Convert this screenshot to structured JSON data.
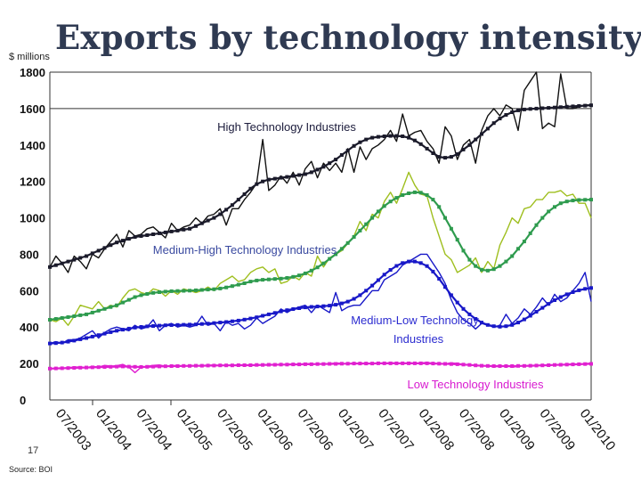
{
  "page": {
    "title": "Exports by technology intensity",
    "unit": "$ millions",
    "page_number": "17",
    "source": "Source: BOI"
  },
  "colors": {
    "high": "#111111",
    "medium_high": "#9fbf1f",
    "medium_high_trend": "#2e9b4e",
    "medium_low": "#1818c8",
    "low": "#e020d0",
    "axis": "#555555"
  },
  "chart_data": {
    "type": "line",
    "title": "Exports by technology intensity",
    "ylabel": "$ millions",
    "xlabel": "",
    "ylim": [
      0,
      1800
    ],
    "yticks": [
      0,
      200,
      400,
      600,
      800,
      1000,
      1200,
      1400,
      1600,
      1800
    ],
    "ytick_labels": [
      "0",
      "200",
      "400",
      "600",
      "800",
      "1000",
      "1200",
      "1400",
      "1600",
      "1800"
    ],
    "x_start": "01/2003",
    "x_end": "06/2010",
    "xtick_labels": [
      "07/2003",
      "01/2004",
      "07/2004",
      "01/2005",
      "07/2005",
      "01/2006",
      "07/2006",
      "01/2007",
      "07/2007",
      "01/2008",
      "07/2008",
      "01/2009",
      "07/2009",
      "01/2010"
    ],
    "series": [
      {
        "name": "High Technology Industries",
        "label_lines": [
          "High Technology Industries"
        ],
        "color_key": "high",
        "actual": [
          730,
          790,
          750,
          700,
          790,
          760,
          720,
          800,
          780,
          830,
          870,
          910,
          840,
          930,
          900,
          910,
          940,
          950,
          920,
          890,
          970,
          930,
          950,
          960,
          1000,
          970,
          1010,
          1020,
          1050,
          960,
          1050,
          1050,
          1100,
          1140,
          1190,
          1430,
          1150,
          1180,
          1230,
          1190,
          1250,
          1180,
          1270,
          1310,
          1220,
          1300,
          1260,
          1300,
          1250,
          1380,
          1250,
          1390,
          1320,
          1380,
          1400,
          1430,
          1480,
          1420,
          1570,
          1450,
          1470,
          1480,
          1420,
          1380,
          1300,
          1500,
          1450,
          1320,
          1400,
          1430,
          1300,
          1480,
          1560,
          1600,
          1560,
          1620,
          1600,
          1480,
          1700,
          1750,
          1800,
          1490,
          1520,
          1500,
          1790,
          1600,
          1600,
          1610,
          1620,
          1620
        ],
        "trend": [
          730,
          740,
          750,
          760,
          770,
          780,
          790,
          805,
          820,
          835,
          850,
          865,
          875,
          885,
          895,
          900,
          905,
          910,
          915,
          920,
          925,
          930,
          935,
          940,
          955,
          970,
          985,
          1000,
          1020,
          1045,
          1070,
          1100,
          1130,
          1160,
          1185,
          1200,
          1210,
          1215,
          1220,
          1225,
          1230,
          1235,
          1240,
          1250,
          1265,
          1280,
          1300,
          1320,
          1345,
          1370,
          1395,
          1415,
          1430,
          1440,
          1445,
          1448,
          1450,
          1450,
          1448,
          1440,
          1425,
          1405,
          1380,
          1355,
          1335,
          1330,
          1335,
          1350,
          1375,
          1400,
          1430,
          1460,
          1490,
          1520,
          1545,
          1565,
          1580,
          1590,
          1595,
          1598,
          1600,
          1602,
          1604,
          1606,
          1608,
          1610,
          1612,
          1614,
          1616,
          1618
        ]
      },
      {
        "name": "Medium-High Technology Industries",
        "label_lines": [
          "Medium-High Technology Industries"
        ],
        "color_key": "medium_high",
        "actual": [
          440,
          430,
          450,
          410,
          460,
          520,
          510,
          500,
          540,
          500,
          520,
          510,
          560,
          600,
          610,
          590,
          580,
          610,
          600,
          570,
          600,
          580,
          610,
          600,
          590,
          600,
          620,
          600,
          640,
          660,
          680,
          650,
          660,
          700,
          720,
          730,
          700,
          720,
          640,
          650,
          680,
          660,
          700,
          680,
          790,
          730,
          780,
          800,
          820,
          860,
          900,
          980,
          930,
          1020,
          1000,
          1090,
          1140,
          1080,
          1160,
          1250,
          1180,
          1130,
          1120,
          1000,
          900,
          800,
          770,
          700,
          720,
          740,
          780,
          700,
          760,
          720,
          850,
          920,
          1000,
          970,
          1050,
          1060,
          1100,
          1100,
          1140,
          1140,
          1150,
          1120,
          1130,
          1080,
          1080,
          1000
        ],
        "trend": [
          440,
          445,
          450,
          455,
          460,
          465,
          470,
          480,
          490,
          500,
          510,
          520,
          535,
          550,
          565,
          575,
          582,
          588,
          592,
          595,
          597,
          598,
          599,
          600,
          602,
          604,
          606,
          608,
          612,
          618,
          625,
          633,
          641,
          650,
          656,
          660,
          662,
          664,
          666,
          670,
          676,
          684,
          695,
          710,
          728,
          750,
          775,
          800,
          830,
          862,
          895,
          930,
          965,
          1000,
          1035,
          1065,
          1090,
          1110,
          1125,
          1135,
          1140,
          1138,
          1125,
          1100,
          1060,
          1000,
          940,
          880,
          820,
          770,
          735,
          715,
          710,
          718,
          735,
          760,
          790,
          830,
          870,
          915,
          960,
          1000,
          1035,
          1060,
          1080,
          1090,
          1095,
          1098,
          1099,
          1100
        ]
      },
      {
        "name": "Medium-Low Technology Industries",
        "label_lines": [
          "Medium-Low Technology",
          "Industries"
        ],
        "color_key": "medium_low",
        "actual": [
          310,
          320,
          310,
          330,
          330,
          340,
          360,
          380,
          340,
          370,
          390,
          400,
          390,
          380,
          410,
          390,
          400,
          440,
          380,
          410,
          420,
          400,
          410,
          400,
          410,
          460,
          410,
          420,
          380,
          430,
          410,
          420,
          390,
          410,
          450,
          420,
          440,
          460,
          500,
          480,
          500,
          510,
          520,
          480,
          520,
          500,
          480,
          590,
          490,
          510,
          520,
          520,
          560,
          600,
          600,
          660,
          680,
          700,
          740,
          760,
          780,
          800,
          800,
          750,
          700,
          640,
          550,
          480,
          440,
          420,
          390,
          420,
          410,
          400,
          410,
          470,
          420,
          450,
          500,
          470,
          510,
          560,
          520,
          580,
          540,
          560,
          600,
          640,
          700,
          540
        ],
        "trend": [
          310,
          312,
          315,
          320,
          326,
          333,
          340,
          348,
          356,
          364,
          372,
          380,
          386,
          392,
          397,
          401,
          404,
          406,
          408,
          410,
          411,
          412,
          413,
          414,
          415,
          417,
          419,
          422,
          425,
          428,
          432,
          436,
          441,
          447,
          454,
          462,
          470,
          478,
          486,
          493,
          499,
          504,
          508,
          511,
          513,
          515,
          518,
          523,
          530,
          540,
          555,
          575,
          600,
          628,
          658,
          688,
          714,
          736,
          752,
          760,
          760,
          752,
          735,
          705,
          665,
          620,
          575,
          535,
          500,
          470,
          445,
          425,
          412,
          405,
          402,
          405,
          412,
          425,
          442,
          462,
          484,
          506,
          528,
          548,
          565,
          580,
          592,
          602,
          610,
          615
        ]
      },
      {
        "name": "Low Technology Industries",
        "label_lines": [
          "Low Technology Industries"
        ],
        "color_key": "low",
        "actual": [
          170,
          175,
          172,
          178,
          180,
          182,
          176,
          185,
          180,
          190,
          186,
          188,
          195,
          180,
          150,
          180,
          185,
          190,
          192,
          185,
          188,
          190,
          185,
          190,
          188,
          186,
          190,
          192,
          188,
          190,
          192,
          188,
          194,
          190,
          188,
          192,
          190,
          195,
          192,
          196,
          198,
          195,
          200,
          198,
          196,
          200,
          198,
          204,
          200,
          198,
          202,
          200,
          204,
          198,
          202,
          200,
          205,
          202,
          198,
          206,
          200,
          204,
          206,
          202,
          200,
          198,
          204,
          200,
          196,
          192,
          188,
          190,
          186,
          182,
          185,
          188,
          180,
          184,
          190,
          186,
          188,
          192,
          190,
          194,
          192,
          196,
          198,
          196,
          200,
          202
        ],
        "trend": [
          172,
          173,
          174,
          175,
          176,
          177,
          178,
          179,
          180,
          181,
          182,
          183,
          184,
          183,
          182,
          181,
          182,
          183,
          184,
          185,
          186,
          186,
          187,
          187,
          188,
          188,
          189,
          189,
          190,
          190,
          190,
          191,
          191,
          191,
          192,
          192,
          193,
          193,
          194,
          194,
          195,
          195,
          196,
          196,
          197,
          197,
          198,
          198,
          199,
          199,
          200,
          200,
          200,
          200,
          201,
          201,
          201,
          201,
          201,
          201,
          201,
          201,
          201,
          200,
          199,
          198,
          197,
          196,
          194,
          192,
          190,
          188,
          187,
          186,
          186,
          186,
          186,
          187,
          187,
          188,
          189,
          190,
          191,
          192,
          193,
          194,
          195,
          196,
          197,
          198
        ]
      }
    ]
  }
}
